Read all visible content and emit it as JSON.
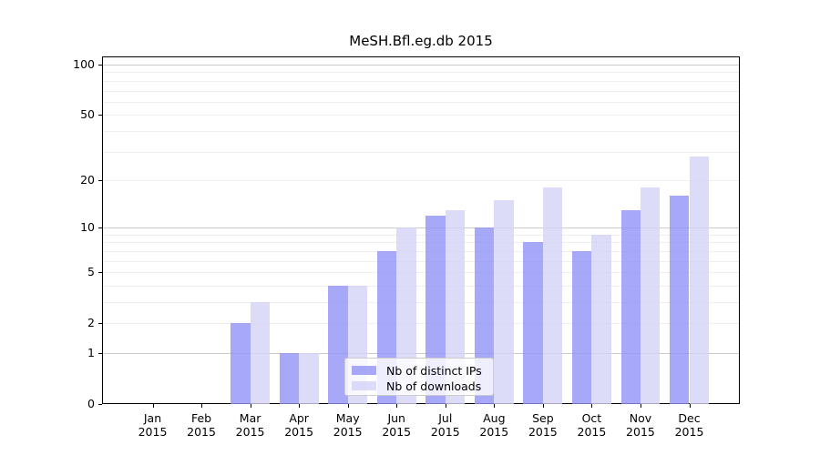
{
  "chart_data": {
    "type": "bar",
    "title": "MeSH.Bfl.eg.db 2015",
    "categories": [
      "Jan",
      "Feb",
      "Mar",
      "Apr",
      "May",
      "Jun",
      "Jul",
      "Aug",
      "Sep",
      "Oct",
      "Nov",
      "Dec"
    ],
    "category_year": "2015",
    "series": [
      {
        "name": "Nb of distinct IPs",
        "color": "#9292f8",
        "values": [
          0,
          0,
          2,
          1,
          4,
          7,
          12,
          10,
          8,
          7,
          13,
          16
        ]
      },
      {
        "name": "Nb of downloads",
        "color": "#d3d3f8",
        "values": [
          0,
          0,
          3,
          1,
          4,
          10,
          13,
          15,
          18,
          9,
          18,
          28
        ]
      }
    ],
    "xlabel": "",
    "ylabel": "",
    "y_scale": "log1p",
    "y_ticks": [
      0,
      1,
      2,
      5,
      10,
      20,
      50,
      100
    ],
    "y_gridlines_major": [
      1,
      10,
      100
    ],
    "y_gridlines_minor": [
      2,
      3,
      4,
      5,
      6,
      7,
      8,
      9,
      20,
      30,
      40,
      50,
      60,
      70,
      80,
      90
    ],
    "ylim": [
      0,
      112
    ],
    "grid": "on",
    "legend_position": "lower center",
    "bar_alpha": 0.8
  }
}
